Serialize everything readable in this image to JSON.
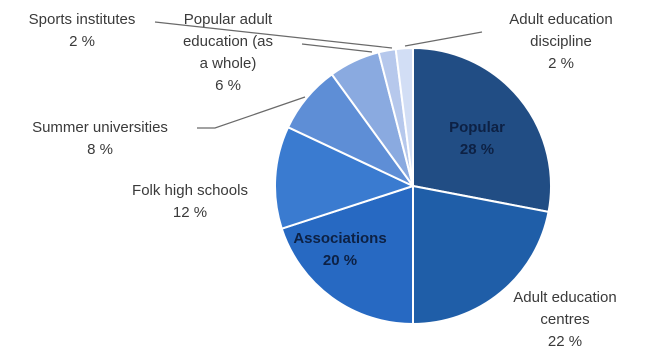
{
  "chart_data": {
    "type": "pie",
    "value_suffix": " %",
    "slices": [
      {
        "label_lines": [
          "Popular"
        ],
        "value": 28,
        "color": "#214d84"
      },
      {
        "label_lines": [
          "Adult education",
          "centres"
        ],
        "value": 22,
        "color": "#1f5ea8"
      },
      {
        "label_lines": [
          "Associations"
        ],
        "value": 20,
        "color": "#2769c2"
      },
      {
        "label_lines": [
          "Folk high schools"
        ],
        "value": 12,
        "color": "#3a7bd0"
      },
      {
        "label_lines": [
          "Summer universities"
        ],
        "value": 8,
        "color": "#5e8ed6"
      },
      {
        "label_lines": [
          "Popular adult",
          "education (as",
          "a whole)"
        ],
        "value": 6,
        "color": "#8aaae0"
      },
      {
        "label_lines": [
          "Sports institutes"
        ],
        "value": 2,
        "color": "#b6c8ec"
      },
      {
        "label_lines": [
          "Adult education",
          "discipline"
        ],
        "value": 2,
        "color": "#d2def5"
      }
    ]
  }
}
